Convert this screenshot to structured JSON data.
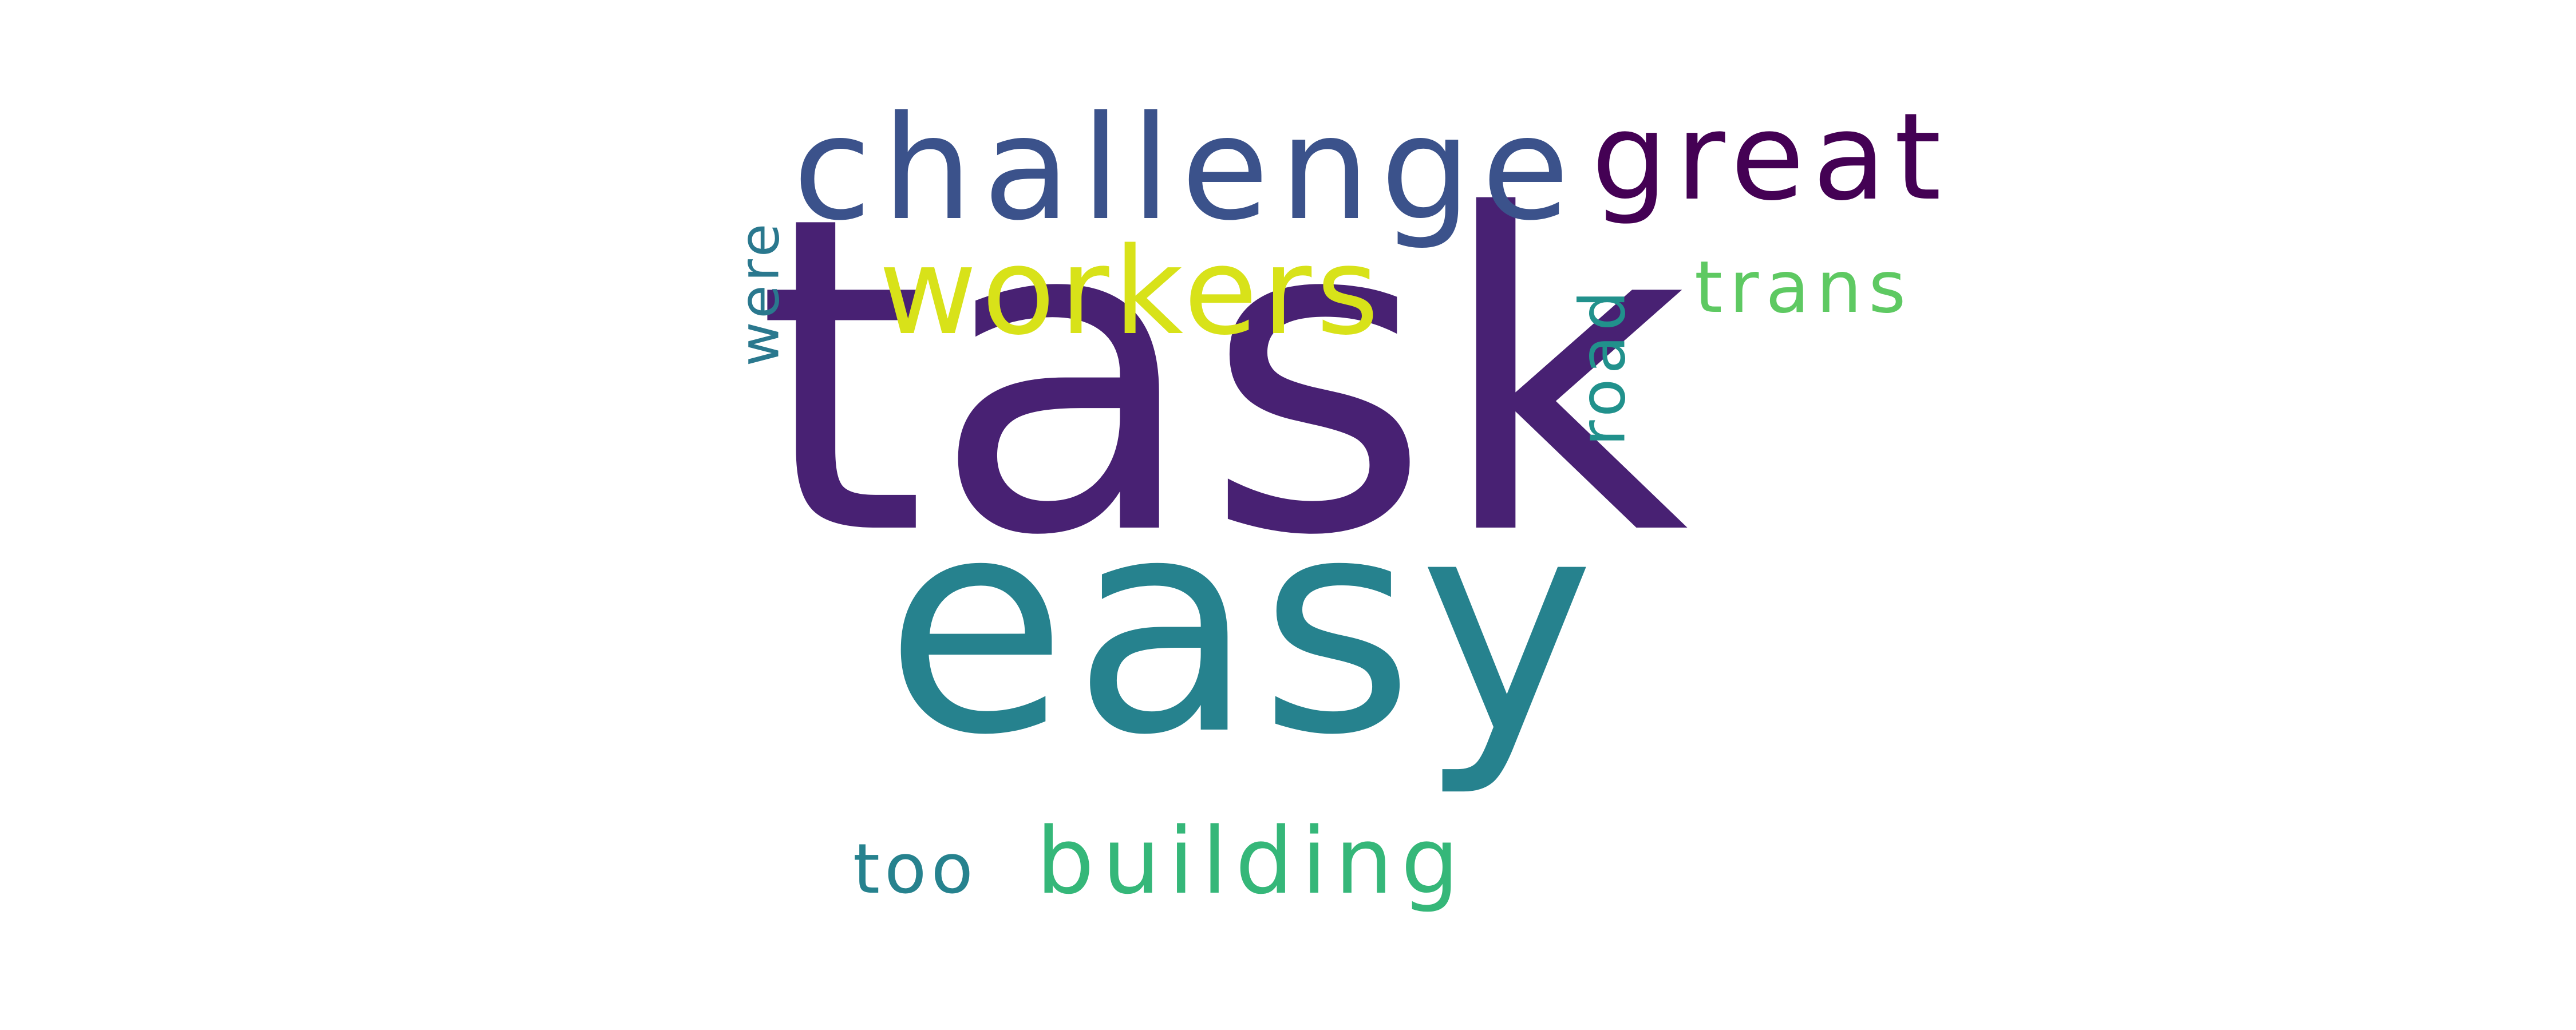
{
  "wordcloud": {
    "words": [
      {
        "text": "task",
        "color": "#482173"
      },
      {
        "text": "easy",
        "color": "#26828e"
      },
      {
        "text": "challenge",
        "color": "#3b528b"
      },
      {
        "text": "great",
        "color": "#440154"
      },
      {
        "text": "workers",
        "color": "#d8e219"
      },
      {
        "text": "trans",
        "color": "#5ec962"
      },
      {
        "text": "building",
        "color": "#35b779"
      },
      {
        "text": "too",
        "color": "#26828e"
      },
      {
        "text": "were",
        "color": "#2a788e"
      },
      {
        "text": "road",
        "color": "#21918c"
      }
    ]
  }
}
